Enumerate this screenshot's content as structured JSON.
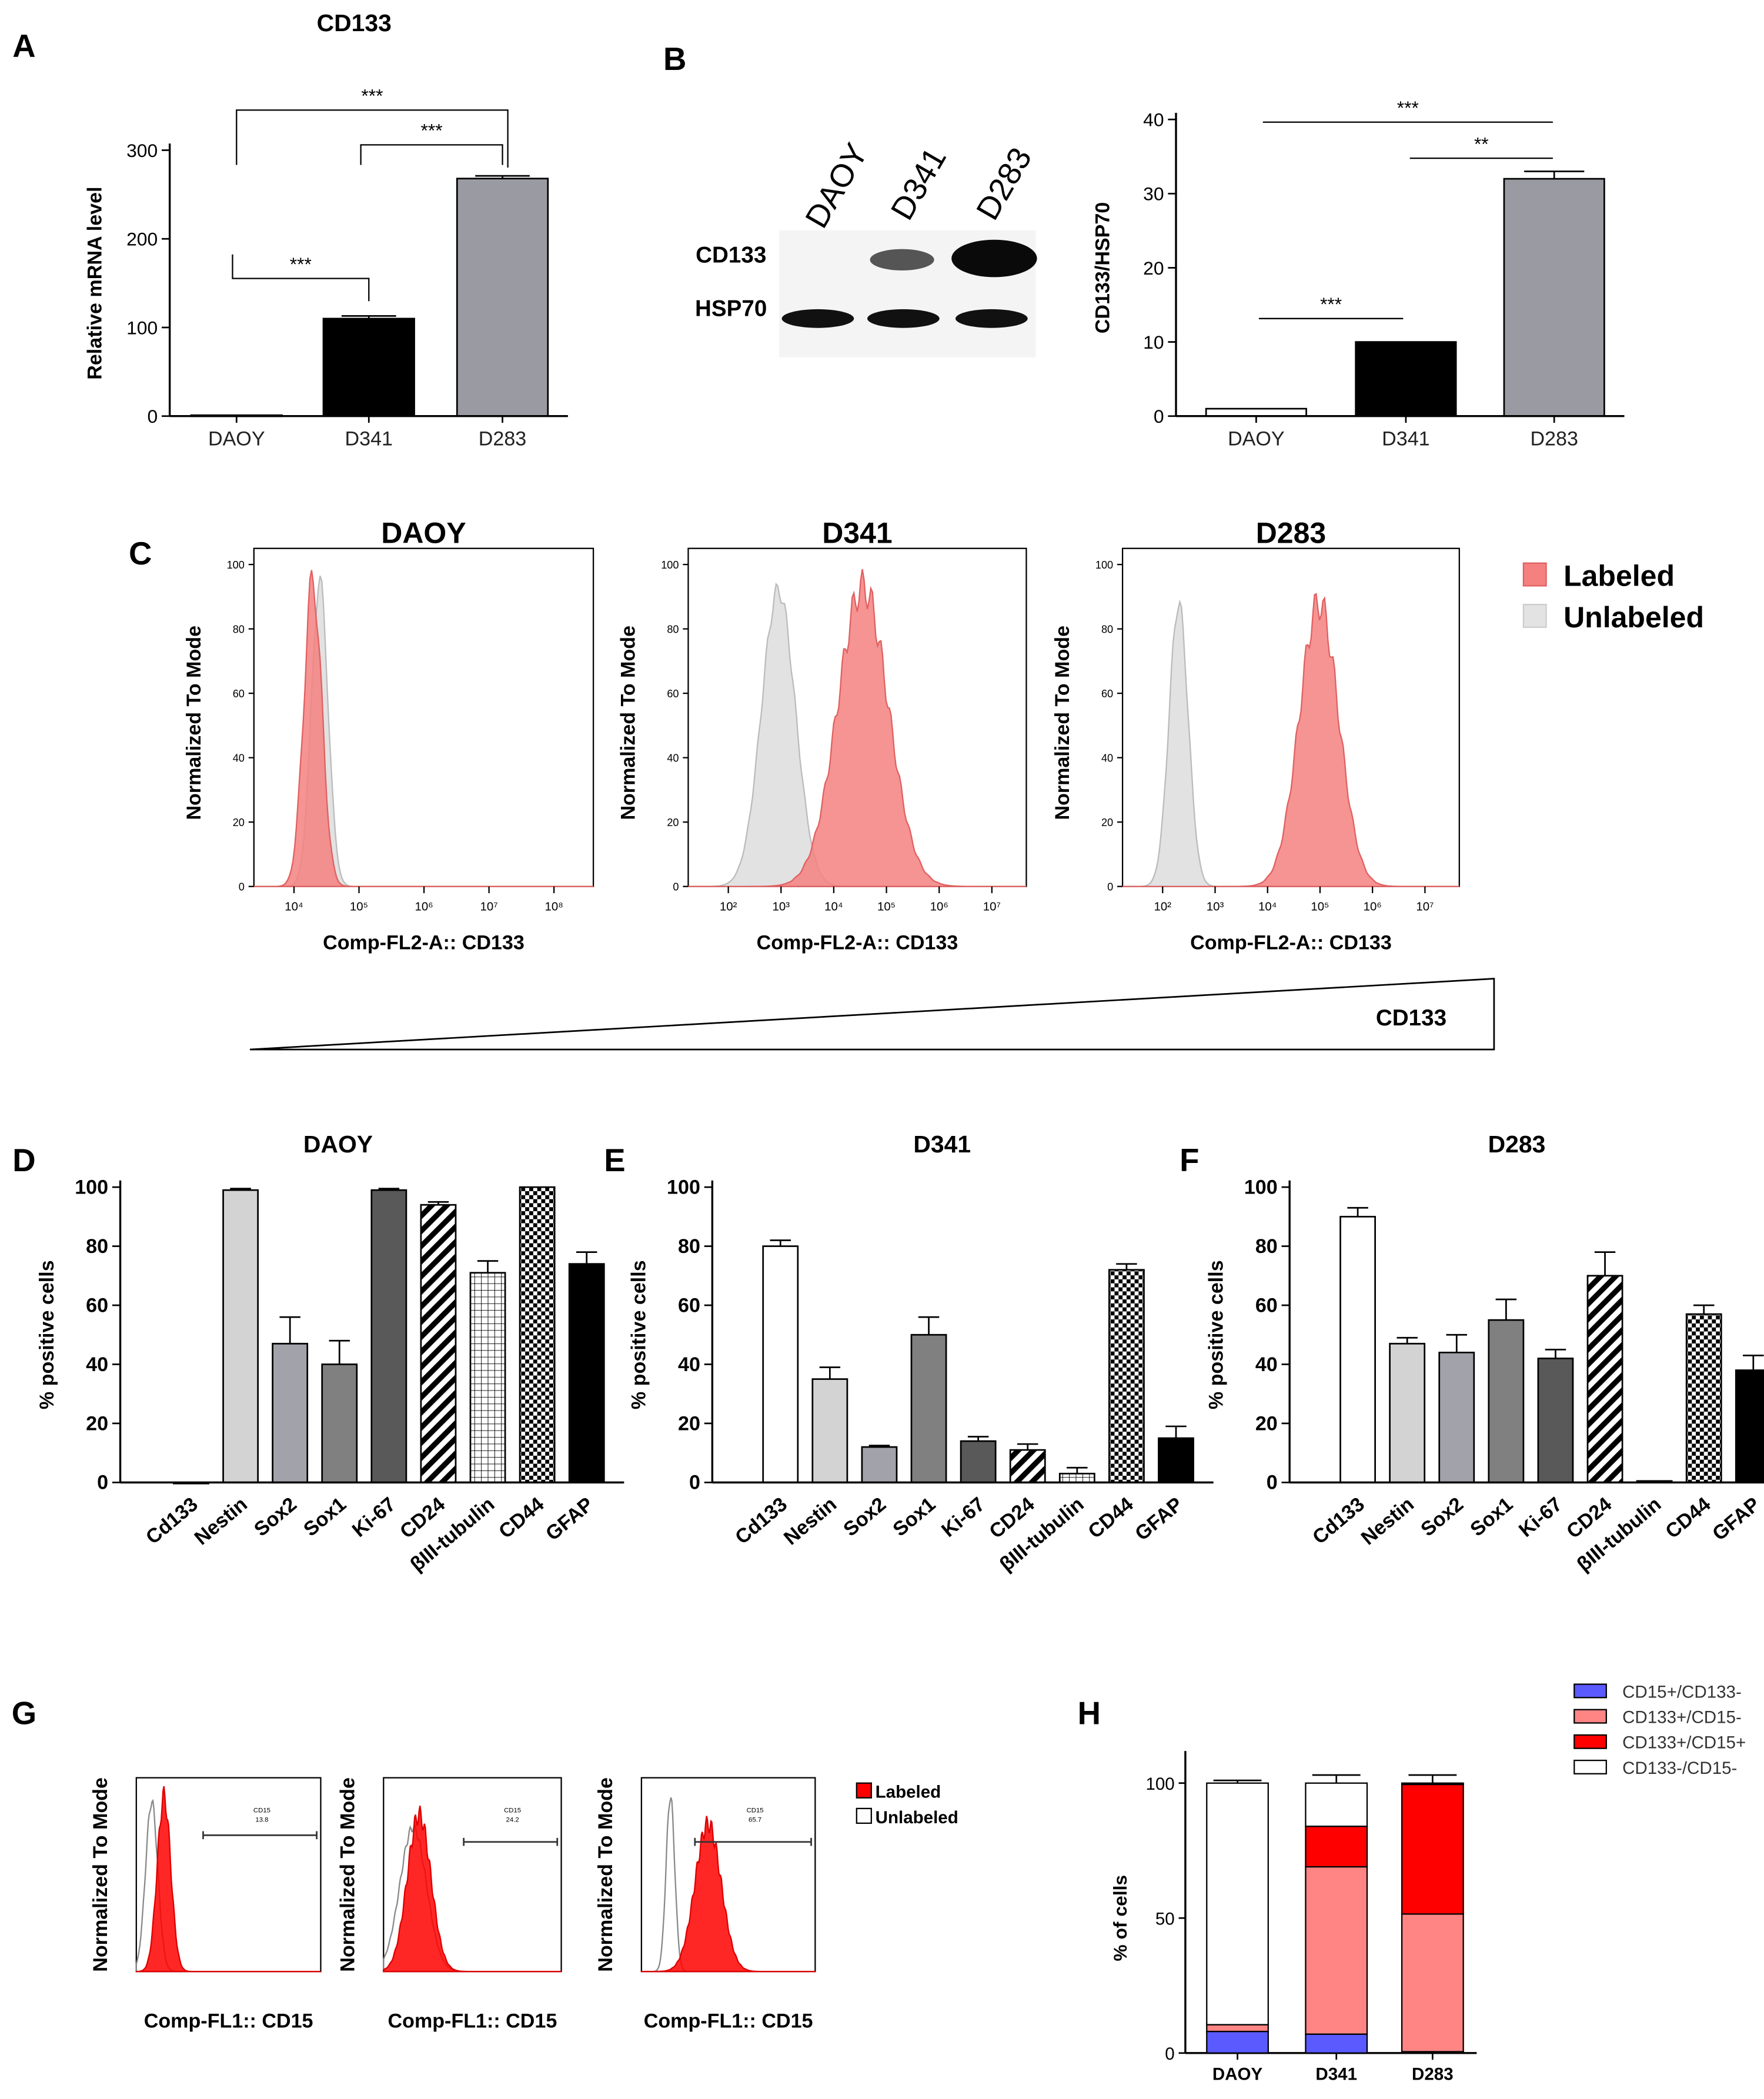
{
  "panel_letters": [
    "A",
    "B",
    "C",
    "D",
    "E",
    "F",
    "G",
    "H"
  ],
  "chart_data": [
    {
      "id": "A",
      "type": "bar",
      "title": "CD133",
      "ylabel": "Relative mRNA level",
      "ylim": [
        0,
        300
      ],
      "yticks": [
        "0",
        "100",
        "200",
        "300"
      ],
      "categories": [
        "DAOY",
        "D341",
        "D283"
      ],
      "values": [
        1,
        110,
        268
      ],
      "errors": [
        0,
        3,
        3
      ],
      "colors": [
        "#ffffff",
        "#000000",
        "#9a9aa2"
      ],
      "significance": [
        {
          "from": 0,
          "to": 1,
          "label": "***"
        },
        {
          "from": 1,
          "to": 2,
          "label": "***"
        },
        {
          "from": 0,
          "to": 2,
          "label": "***"
        }
      ]
    },
    {
      "id": "B",
      "type": "bar",
      "ylabel": "CD133/HSP70",
      "ylim": [
        0,
        40
      ],
      "yticks": [
        "0",
        "10",
        "20",
        "30",
        "40"
      ],
      "categories": [
        "DAOY",
        "D341",
        "D283"
      ],
      "values": [
        1,
        10,
        32
      ],
      "errors": [
        0,
        0,
        1
      ],
      "colors": [
        "#ffffff",
        "#000000",
        "#9a9aa2"
      ],
      "significance": [
        {
          "from": 0,
          "to": 1,
          "label": "***"
        },
        {
          "from": 1,
          "to": 2,
          "label": "**"
        },
        {
          "from": 0,
          "to": 2,
          "label": "***"
        }
      ],
      "blot": {
        "lanes": [
          "DAOY",
          "D341",
          "D283"
        ],
        "rows": [
          "CD133",
          "HSP70"
        ]
      }
    },
    {
      "id": "C",
      "type": "histogram",
      "ylabel": "Normalized To Mode",
      "xlabel": "Comp-FL2-A:: CD133",
      "yticks": [
        "0",
        "20",
        "40",
        "60",
        "80",
        "100"
      ],
      "legend": [
        "Labeled",
        "Unlabeled"
      ],
      "legend_colors": [
        "#f28b8b",
        "#e3e3e3"
      ],
      "plots": [
        {
          "title": "DAOY",
          "xticks": [
            "10⁴",
            "10⁵",
            "10⁶",
            "10⁷",
            "10⁸"
          ],
          "labeled_peak_log": 0.25,
          "unlabeled_peak_log": 0.35
        },
        {
          "title": "D341",
          "xticks": [
            "10²",
            "10³",
            "10⁴",
            "10⁵",
            "10⁶",
            "10⁷"
          ],
          "labeled_peak_log": 2.6,
          "unlabeled_peak_log": 1.1
        },
        {
          "title": "D283",
          "xticks": [
            "10²",
            "10³",
            "10⁴",
            "10⁵",
            "10⁶",
            "10⁷"
          ],
          "labeled_peak_log": 3.0,
          "unlabeled_peak_log": 0.5
        }
      ],
      "gradient_label": "CD133"
    },
    {
      "id": "D",
      "type": "bar",
      "title": "DAOY",
      "ylabel": "% positive cells",
      "ylim": [
        0,
        100
      ],
      "yticks": [
        "0",
        "20",
        "40",
        "60",
        "80",
        "100"
      ],
      "categories": [
        "Cd133",
        "Nestin",
        "Sox2",
        "Sox1",
        "Ki-67",
        "CD24",
        "βIII-tubulin",
        "CD44",
        "GFAP"
      ],
      "values": [
        0,
        99,
        47,
        40,
        99,
        94,
        71,
        100,
        74
      ],
      "errors": [
        0,
        0.5,
        9,
        8,
        0.5,
        1,
        4,
        0,
        4
      ]
    },
    {
      "id": "E",
      "type": "bar",
      "title": "D341",
      "ylabel": "% positive cells",
      "ylim": [
        0,
        100
      ],
      "yticks": [
        "0",
        "20",
        "40",
        "60",
        "80",
        "100"
      ],
      "categories": [
        "Cd133",
        "Nestin",
        "Sox2",
        "Sox1",
        "Ki-67",
        "CD24",
        "βIII-tubulin",
        "CD44",
        "GFAP"
      ],
      "values": [
        80,
        35,
        12,
        50,
        14,
        11,
        3,
        72,
        15
      ],
      "errors": [
        2,
        4,
        0.5,
        6,
        1.5,
        2,
        2,
        2,
        4
      ]
    },
    {
      "id": "F",
      "type": "bar",
      "title": "D283",
      "ylabel": "% positive cells",
      "ylim": [
        0,
        100
      ],
      "yticks": [
        "0",
        "20",
        "40",
        "60",
        "80",
        "100"
      ],
      "categories": [
        "Cd133",
        "Nestin",
        "Sox2",
        "Sox1",
        "Ki-67",
        "CD24",
        "βIII-tubulin",
        "CD44",
        "GFAP"
      ],
      "values": [
        90,
        47,
        44,
        55,
        42,
        70,
        0.5,
        57,
        38
      ],
      "errors": [
        3,
        2,
        6,
        7,
        3,
        8,
        0,
        3,
        5
      ]
    },
    {
      "id": "G",
      "type": "histogram",
      "ylabel": "Normalized To Mode",
      "xlabel": "Comp-FL1:: CD15",
      "legend": [
        "Labeled",
        "Unlabeled"
      ],
      "legend_colors": [
        "#ff0000",
        "#ffffff"
      ],
      "plots": [
        {
          "gate": "CD15",
          "value": "13.8"
        },
        {
          "gate": "CD15",
          "value": "24.2"
        },
        {
          "gate": "CD15",
          "value": "65.7"
        }
      ]
    },
    {
      "id": "H",
      "type": "stacked-bar",
      "ylabel": "% of cells",
      "ylim": [
        0,
        100
      ],
      "yticks": [
        "0",
        "50",
        "100"
      ],
      "categories": [
        "DAOY",
        "D341",
        "D283"
      ],
      "series": [
        {
          "name": "CD15+/CD133-",
          "color": "#5a5aff",
          "values": [
            8,
            7,
            0.5
          ],
          "errors": [
            1,
            1,
            0
          ]
        },
        {
          "name": "CD133+/CD15-",
          "color": "#ff8585",
          "values": [
            2.5,
            62,
            51
          ],
          "errors": [
            0.5,
            4,
            3
          ]
        },
        {
          "name": "CD133+/CD15+",
          "color": "#ff0000",
          "values": [
            0,
            15,
            48
          ],
          "errors": [
            0,
            3,
            0
          ]
        },
        {
          "name": "CD133-/CD15-",
          "color": "#ffffff",
          "values": [
            89.5,
            16,
            0.5
          ],
          "errors": [
            1,
            3,
            3
          ]
        }
      ]
    }
  ]
}
